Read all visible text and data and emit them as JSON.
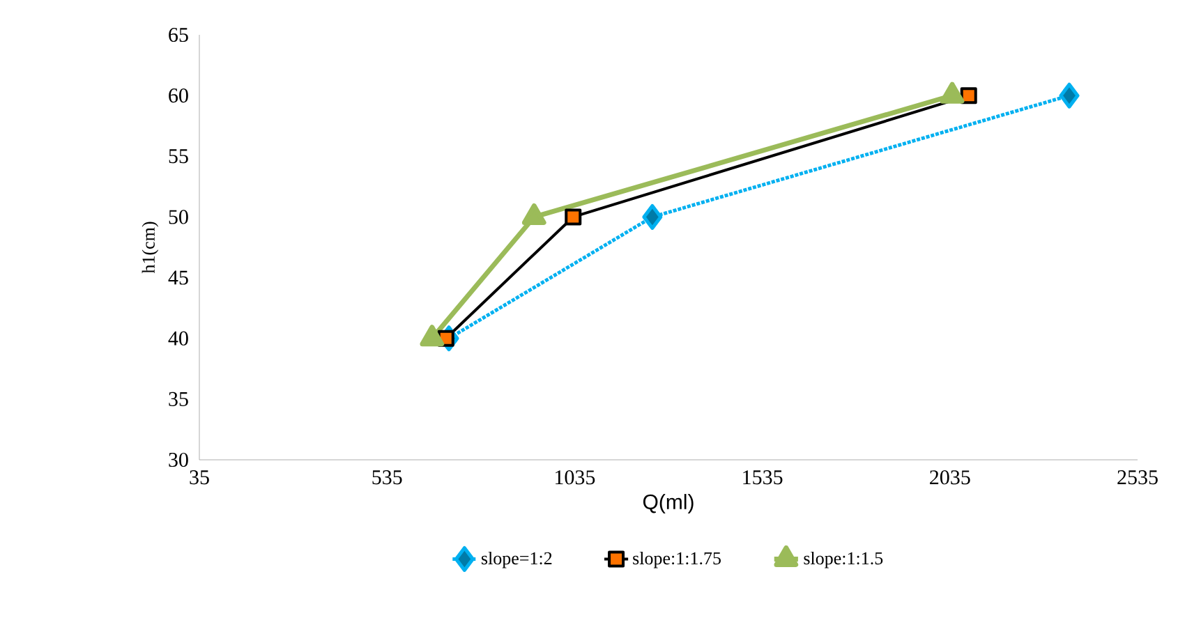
{
  "chart_data": {
    "type": "line",
    "xlabel": "Q(ml)",
    "ylabel": "h1(cm)",
    "xlim": [
      35,
      2535
    ],
    "xticks": [
      35,
      535,
      1035,
      1535,
      2035,
      2535
    ],
    "ylim": [
      30,
      65
    ],
    "yticks": [
      30,
      35,
      40,
      45,
      50,
      55,
      60,
      65
    ],
    "grid": false,
    "legend": "bottom",
    "series": [
      {
        "name": "slope=1:2",
        "color": "#00b0f0",
        "x": [
          700,
          1242,
          2353
        ],
        "values": [
          40,
          50,
          60
        ],
        "marker": "diamond",
        "line_style": "dotted"
      },
      {
        "name": "slope:1:1.75",
        "color": "#000000",
        "x": [
          692,
          1031,
          2085
        ],
        "values": [
          40,
          50,
          60
        ],
        "marker": "square",
        "line_style": "solid"
      },
      {
        "name": "slope:1:1.5",
        "color": "#9bbb59",
        "x": [
          655,
          927,
          2041
        ],
        "values": [
          40,
          50,
          60
        ],
        "marker": "triangle",
        "line_style": "solid"
      }
    ]
  }
}
